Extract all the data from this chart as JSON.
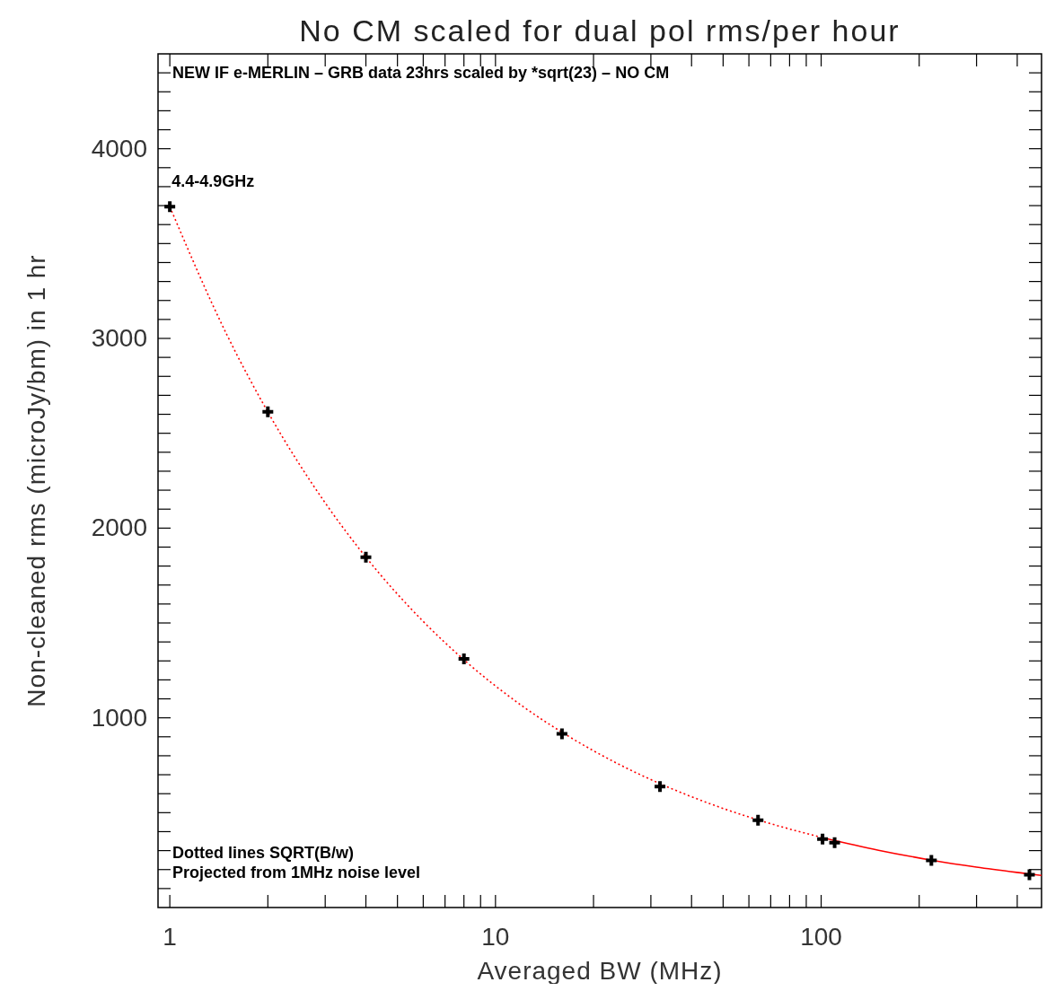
{
  "chart_data": {
    "type": "scatter",
    "title": "No CM scaled for dual pol rms/per hour",
    "xlabel": "Averaged BW (MHz)",
    "ylabel": "Non-cleaned rms (microJy/bm) in 1 hr",
    "log": "x",
    "grid": false,
    "xlim": [
      0.92,
      475
    ],
    "ylim": [
      0,
      4500
    ],
    "xticks": [
      1,
      {
        "value": 2,
        "label": null
      },
      {
        "value": 3,
        "label": null
      },
      {
        "value": 4,
        "label": null
      },
      {
        "value": 5,
        "label": null
      },
      {
        "value": 6,
        "label": null
      },
      {
        "value": 7,
        "label": null
      },
      {
        "value": 8,
        "label": null
      },
      {
        "value": 9,
        "label": null
      },
      10,
      {
        "value": 20,
        "label": null
      },
      {
        "value": 30,
        "label": null
      },
      {
        "value": 40,
        "label": null
      },
      {
        "value": 50,
        "label": null
      },
      {
        "value": 60,
        "label": null
      },
      {
        "value": 70,
        "label": null
      },
      {
        "value": 80,
        "label": null
      },
      {
        "value": 90,
        "label": null
      },
      100,
      {
        "value": 200,
        "label": null
      },
      {
        "value": 300,
        "label": null
      },
      {
        "value": 400,
        "label": null
      }
    ],
    "yticks": [
      {
        "value": 100,
        "label": null
      },
      {
        "value": 200,
        "label": null
      },
      {
        "value": 300,
        "label": null
      },
      {
        "value": 400,
        "label": null
      },
      {
        "value": 500,
        "label": null
      },
      {
        "value": 600,
        "label": null
      },
      {
        "value": 700,
        "label": null
      },
      {
        "value": 800,
        "label": null
      },
      {
        "value": 900,
        "label": null
      },
      1000,
      {
        "value": 1100,
        "label": null
      },
      {
        "value": 1200,
        "label": null
      },
      {
        "value": 1300,
        "label": null
      },
      {
        "value": 1400,
        "label": null
      },
      {
        "value": 1500,
        "label": null
      },
      {
        "value": 1600,
        "label": null
      },
      {
        "value": 1700,
        "label": null
      },
      {
        "value": 1800,
        "label": null
      },
      {
        "value": 1900,
        "label": null
      },
      2000,
      {
        "value": 2100,
        "label": null
      },
      {
        "value": 2200,
        "label": null
      },
      {
        "value": 2300,
        "label": null
      },
      {
        "value": 2400,
        "label": null
      },
      {
        "value": 2500,
        "label": null
      },
      {
        "value": 2600,
        "label": null
      },
      {
        "value": 2700,
        "label": null
      },
      {
        "value": 2800,
        "label": null
      },
      {
        "value": 2900,
        "label": null
      },
      3000,
      {
        "value": 3100,
        "label": null
      },
      {
        "value": 3200,
        "label": null
      },
      {
        "value": 3300,
        "label": null
      },
      {
        "value": 3400,
        "label": null
      },
      {
        "value": 3500,
        "label": null
      },
      {
        "value": 3600,
        "label": null
      },
      {
        "value": 3700,
        "label": null
      },
      {
        "value": 3800,
        "label": null
      },
      {
        "value": 3900,
        "label": null
      },
      4000,
      {
        "value": 4100,
        "label": null
      },
      {
        "value": 4200,
        "label": null
      },
      {
        "value": 4300,
        "label": null
      },
      {
        "value": 4400,
        "label": null
      }
    ],
    "series": [
      {
        "type": "line",
        "color": "#ff0000",
        "line_style": "dotted",
        "marker": "none",
        "x": [
          1,
          1.5,
          2,
          3,
          4,
          6,
          8,
          12,
          16,
          24,
          32,
          48,
          64,
          101
        ],
        "values": [
          3694,
          3016,
          2612,
          2133,
          1847,
          1508,
          1306,
          1066,
          924,
          754,
          653,
          533,
          462,
          368
        ]
      },
      {
        "type": "line",
        "color": "#ff0000",
        "line_style": "solid",
        "marker": "none",
        "x": [
          101,
          150,
          218,
          300,
          436,
          475
        ],
        "values": [
          368,
          302,
          250,
          213,
          177,
          169
        ]
      },
      {
        "color": "#000000",
        "marker": "cross",
        "x": [
          1,
          2,
          4,
          8,
          16,
          32,
          64,
          101,
          110,
          218,
          436
        ],
        "values": [
          3694,
          2613,
          1847,
          1311,
          916,
          638,
          460,
          361,
          342,
          248,
          173
        ]
      }
    ],
    "annotations": [
      "NEW IF e-MERLIN – GRB data 23hrs  scaled by *sqrt(23) – NO CM",
      {
        "text": "4.4-4.9GHz",
        "x": 1,
        "y": 3694
      },
      "Dotted lines SQRT(B/w)",
      "Projected from 1MHz noise level"
    ]
  }
}
